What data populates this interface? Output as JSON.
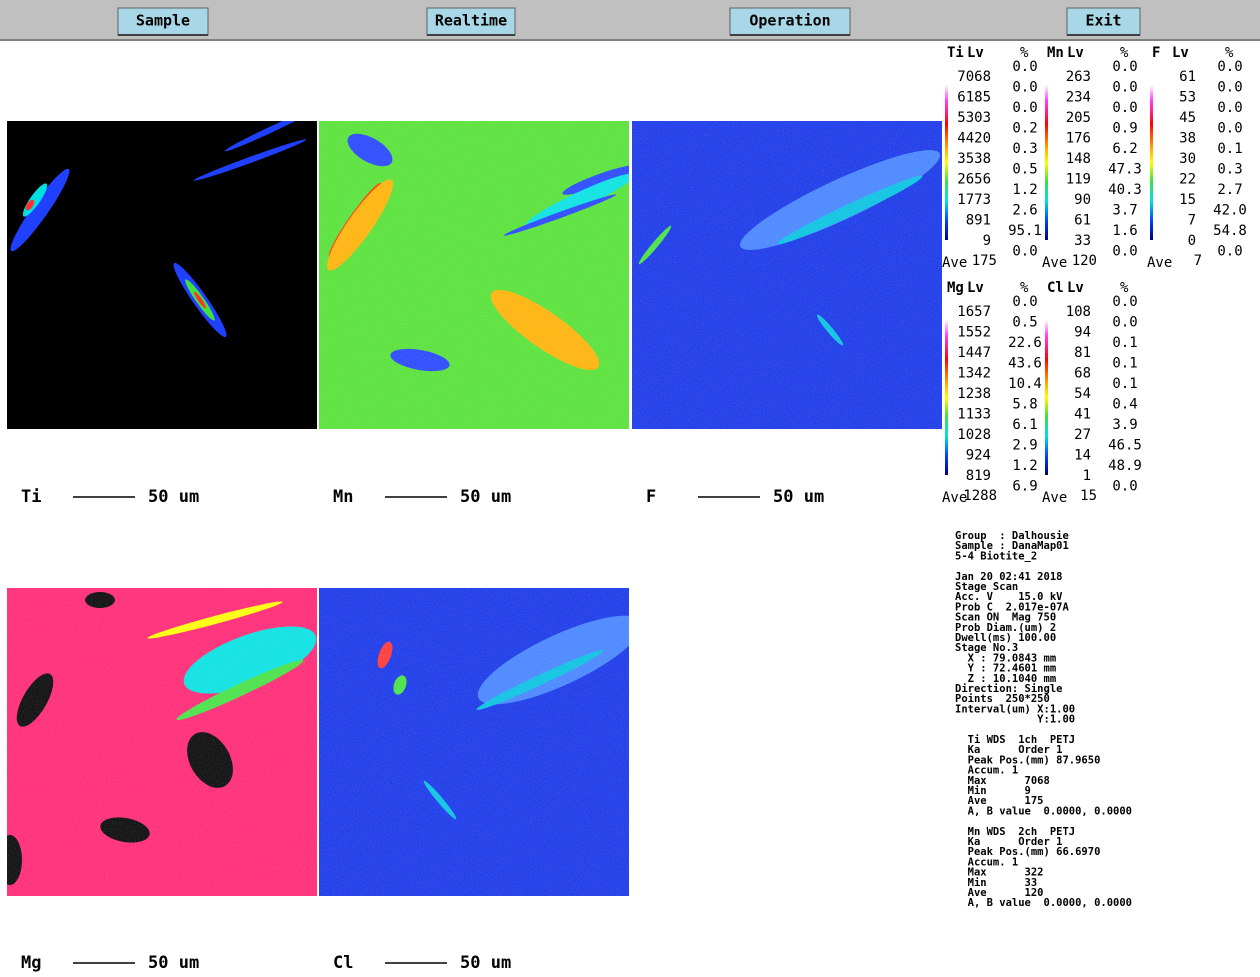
{
  "menu": [
    "Sample",
    "Realtime",
    "Operation",
    "Exit"
  ],
  "maps": [
    {
      "element": "Ti",
      "scale": "50 um"
    },
    {
      "element": "Mn",
      "scale": "50 um"
    },
    {
      "element": "F",
      "scale": "50 um"
    },
    {
      "element": "Mg",
      "scale": "50 um"
    },
    {
      "element": "Cl",
      "scale": "50 um"
    }
  ],
  "legends": [
    {
      "element": "Ti",
      "level_header": "Lv",
      "pct_header": "%",
      "levels": [
        7068,
        6185,
        5303,
        4420,
        3538,
        2656,
        1773,
        891,
        9
      ],
      "percents": [
        "0.0",
        "0.0",
        "0.0",
        "0.2",
        "0.3",
        "0.5",
        "1.2",
        "2.6",
        "95.1",
        "0.0"
      ],
      "ave_label": "Ave",
      "ave": 175
    },
    {
      "element": "Mn",
      "level_header": "Lv",
      "pct_header": "%",
      "levels": [
        263,
        234,
        205,
        176,
        148,
        119,
        90,
        61,
        33
      ],
      "percents": [
        "0.0",
        "0.0",
        "0.0",
        "0.9",
        "6.2",
        "47.3",
        "40.3",
        "3.7",
        "1.6",
        "0.0"
      ],
      "ave_label": "Ave",
      "ave": 120
    },
    {
      "element": "F",
      "level_header": "Lv",
      "pct_header": "%",
      "levels": [
        61,
        53,
        45,
        38,
        30,
        22,
        15,
        7,
        0
      ],
      "percents": [
        "0.0",
        "0.0",
        "0.0",
        "0.0",
        "0.1",
        "0.3",
        "2.7",
        "42.0",
        "54.8",
        "0.0"
      ],
      "ave_label": "Ave",
      "ave": 7
    },
    {
      "element": "Mg",
      "level_header": "Lv",
      "pct_header": "%",
      "levels": [
        1657,
        1552,
        1447,
        1342,
        1238,
        1133,
        1028,
        924,
        819
      ],
      "percents": [
        "0.0",
        "0.5",
        "22.6",
        "43.6",
        "10.4",
        "5.8",
        "6.1",
        "2.9",
        "1.2",
        "6.9"
      ],
      "ave_label": "Ave",
      "ave": 1288
    },
    {
      "element": "Cl",
      "level_header": "Lv",
      "pct_header": "%",
      "levels": [
        108,
        94,
        81,
        68,
        54,
        41,
        27,
        14,
        1
      ],
      "percents": [
        "0.0",
        "0.0",
        "0.1",
        "0.1",
        "0.1",
        "0.4",
        "3.9",
        "46.5",
        "48.9",
        "0.0"
      ],
      "ave_label": "Ave",
      "ave": 15
    }
  ],
  "info": [
    [
      "Group  : Dalhousie",
      "Sample : DanaMap01",
      "5-4 Biotite_2"
    ],
    [
      "Jan 20 02:41 2018",
      "Stage Scan",
      "Acc. V    15.0 kV",
      "Prob C  2.017e-07A",
      "Scan ON  Mag 750",
      "Prob Diam.(um) 2",
      "Dwell(ms) 100.00",
      "Stage No.3",
      "  X : 79.0843 mm",
      "  Y : 72.4601 mm",
      "  Z : 10.1040 mm",
      "Direction: Single",
      "Points  250*250",
      "Interval(um) X:1.00",
      "             Y:1.00"
    ],
    [
      "  Ti WDS  1ch  PETJ",
      "  Ka      Order 1",
      "  Peak Pos.(mm) 87.9650",
      "  Accum. 1",
      "  Max      7068",
      "  Min      9",
      "  Ave      175",
      "  A, B value  0.0000, 0.0000"
    ],
    [
      "  Mn WDS  2ch  PETJ",
      "  Ka      Order 1",
      "  Peak Pos.(mm) 66.6970",
      "  Accum. 1",
      "  Max      322",
      "  Min      33",
      "  Ave      120",
      "  A, B value  0.0000, 0.0000"
    ]
  ]
}
